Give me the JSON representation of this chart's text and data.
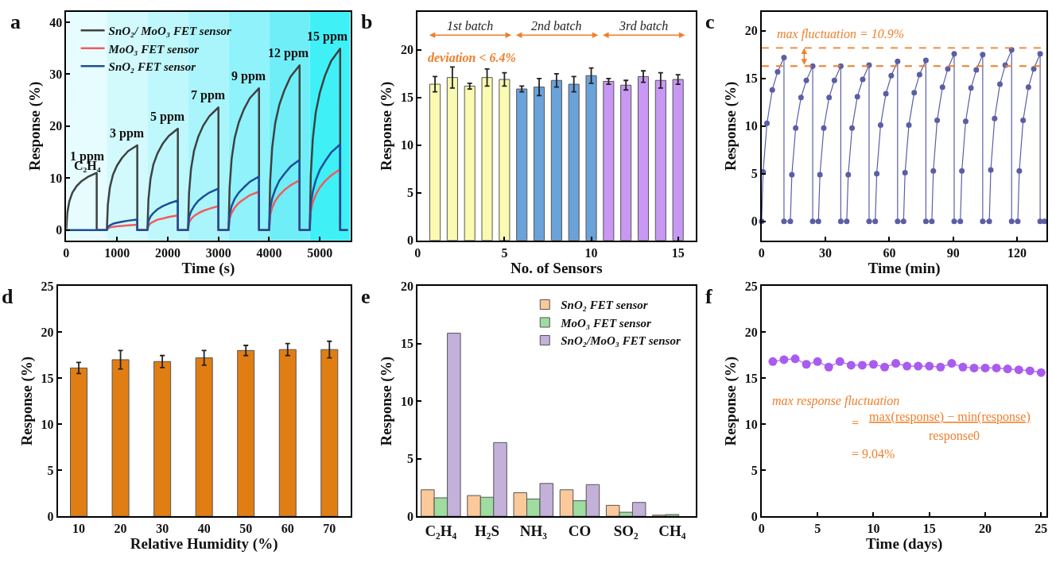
{
  "chart_data": [
    {
      "type": "line",
      "title": "a",
      "xlabel": "Time (s)",
      "ylabel": "Response (%)",
      "xlim": [
        0,
        5600
      ],
      "xticks": [
        0,
        1000,
        2000,
        3000,
        4000,
        5000
      ],
      "ylim": [
        -2,
        42
      ],
      "yticks": [
        0,
        10,
        20,
        30,
        40
      ],
      "grid": false,
      "legend": "top left",
      "x": [
        0,
        20,
        60,
        120,
        200,
        300,
        420,
        600,
        600,
        800,
        820,
        860,
        920,
        1000,
        1100,
        1220,
        1400,
        1400,
        1600,
        1620,
        1660,
        1720,
        1800,
        1900,
        2020,
        2200,
        2200,
        2400,
        2420,
        2460,
        2520,
        2600,
        2700,
        2820,
        3000,
        3000,
        3200,
        3220,
        3260,
        3320,
        3400,
        3500,
        3620,
        3800,
        3800,
        4000,
        4020,
        4060,
        4120,
        4200,
        4300,
        4420,
        4600,
        4600,
        4800,
        4820,
        4860,
        4920,
        5000,
        5100,
        5220,
        5400,
        5400,
        5550
      ],
      "series": [
        {
          "name": "SnO₂/ MoO₃ FET sensor",
          "color": "#404040",
          "values": [
            0,
            3.3,
            5.5,
            7.2,
            8.4,
            9.4,
            10.2,
            11,
            0,
            0,
            4.9,
            8.2,
            10.6,
            12.4,
            13.9,
            15.2,
            16.3,
            0,
            0,
            5.9,
            9.8,
            12.7,
            14.8,
            16.6,
            18.1,
            19.5,
            0,
            0,
            7.1,
            11.8,
            15.3,
            17.9,
            20.1,
            21.9,
            23.6,
            0,
            0,
            8.2,
            13.7,
            17.7,
            20.7,
            23.2,
            25.4,
            27.3,
            0,
            0,
            9.5,
            15.9,
            20.6,
            24.1,
            26.9,
            29.5,
            31.7,
            0,
            0,
            10.5,
            17.5,
            22.7,
            26.5,
            29.7,
            32.5,
            34.9,
            0,
            0
          ]
        },
        {
          "name": "MoO₃ FET sensor",
          "color": "#f25c5c",
          "values": [
            null,
            null,
            null,
            null,
            null,
            null,
            null,
            null,
            0,
            0,
            0.3,
            0.5,
            0.6,
            0.7,
            0.8,
            0.9,
            1,
            0,
            0,
            0.8,
            1.3,
            1.6,
            2.0,
            2.2,
            2.5,
            2.8,
            0,
            0,
            1.4,
            2.1,
            2.7,
            3.2,
            3.7,
            4.1,
            4.6,
            0,
            0,
            2.2,
            3.3,
            4.3,
            5.2,
            5.9,
            6.7,
            7.4,
            0,
            0,
            2.9,
            4.3,
            5.6,
            6.7,
            7.7,
            8.6,
            9.6,
            0,
            0,
            3.5,
            5.3,
            6.8,
            8.2,
            9.4,
            10.5,
            11.7,
            0,
            0
          ]
        },
        {
          "name": "SnO₂ FET sensor",
          "color": "#1f4e96",
          "values": [
            null,
            0,
            0,
            0,
            0,
            0,
            0,
            0,
            0,
            0,
            0.6,
            0.9,
            1.2,
            1.4,
            1.6,
            1.8,
            2,
            0,
            0,
            1.7,
            2.6,
            3.3,
            4.0,
            4.6,
            5.1,
            5.7,
            0,
            0,
            2.4,
            3.6,
            4.6,
            5.6,
            6.4,
            7.2,
            8,
            0,
            0,
            3.1,
            4.6,
            6.0,
            7.2,
            8.2,
            9.3,
            10.3,
            0,
            0,
            4.1,
            6.1,
            7.8,
            9.5,
            10.8,
            12.2,
            13.5,
            0,
            0,
            5,
            7.4,
            9.6,
            11.6,
            13.2,
            14.9,
            16.5,
            0,
            0
          ]
        }
      ],
      "bands": [
        {
          "axis": "x",
          "from": 0,
          "to": 800,
          "color": "#e6fcfe"
        },
        {
          "axis": "x",
          "from": 800,
          "to": 1600,
          "color": "#d2fafd"
        },
        {
          "axis": "x",
          "from": 1600,
          "to": 2400,
          "color": "#bff8fc"
        },
        {
          "axis": "x",
          "from": 2400,
          "to": 3200,
          "color": "#a9f5fb"
        },
        {
          "axis": "x",
          "from": 3200,
          "to": 4000,
          "color": "#90f2fa"
        },
        {
          "axis": "x",
          "from": 4000,
          "to": 4800,
          "color": "#70eef8"
        },
        {
          "axis": "x",
          "from": 4800,
          "to": 5600,
          "color": "#3ff0f7"
        }
      ],
      "annotations": [
        "1 ppm",
        "C₂H₄",
        "3 ppm",
        "5 ppm",
        "7 ppm",
        "9 ppm",
        "12 ppm",
        "15 ppm"
      ]
    },
    {
      "type": "bar",
      "title": "b",
      "xlabel": "No. of Sensors",
      "ylabel": "Response (%)",
      "xlim": [
        0,
        16
      ],
      "xticks": [
        0,
        5,
        10,
        15
      ],
      "ylim": [
        0,
        24
      ],
      "yticks": [
        0,
        5,
        10,
        15,
        20
      ],
      "grid": false,
      "x": [
        1,
        2,
        3,
        4,
        5,
        6,
        7,
        8,
        9,
        10,
        11,
        12,
        13,
        14,
        15
      ],
      "values": [
        16.4,
        17.1,
        16.2,
        17.1,
        16.9,
        15.9,
        16.1,
        16.8,
        16.4,
        17.3,
        16.7,
        16.3,
        17.2,
        16.8,
        16.9
      ],
      "errors": [
        0.8,
        1.1,
        0.3,
        0.9,
        0.7,
        0.3,
        0.9,
        0.7,
        0.8,
        0.8,
        0.3,
        0.5,
        0.6,
        0.8,
        0.5
      ],
      "colors": [
        "#fafab0",
        "#fafab0",
        "#fafab0",
        "#fafab0",
        "#fafab0",
        "#6aa2da",
        "#6aa2da",
        "#6aa2da",
        "#6aa2da",
        "#6aa2da",
        "#c898f4",
        "#c898f4",
        "#c898f4",
        "#c898f4",
        "#c898f4"
      ],
      "annotations": [
        "1st batch",
        "2nd batch",
        "3rd batch",
        "deviation < 6.4%"
      ]
    },
    {
      "type": "line",
      "title": "c",
      "xlabel": "Time (min)",
      "ylabel": "Response (%)",
      "xlim": [
        0,
        134
      ],
      "xticks": [
        0,
        30,
        60,
        90,
        120
      ],
      "ylim": [
        -2,
        22
      ],
      "yticks": [
        0,
        5,
        10,
        15,
        20
      ],
      "grid": false,
      "marker": "circle",
      "x": [
        0,
        0.7,
        2.5,
        5,
        7.5,
        10.5,
        10.5,
        13.5,
        14.2,
        16,
        18.5,
        21,
        24,
        24,
        26.7,
        27.4,
        29.2,
        31.7,
        34.2,
        37.2,
        37.2,
        40,
        40.7,
        42.5,
        45,
        47.5,
        50.5,
        50.5,
        53.4,
        54.1,
        55.9,
        58.4,
        60.9,
        63.9,
        63.9,
        66.7,
        67.4,
        69.2,
        71.7,
        74.2,
        77.2,
        77.2,
        80,
        80.7,
        82.5,
        85,
        87.5,
        90.5,
        90.5,
        93.4,
        94.1,
        95.9,
        98.4,
        100.9,
        103.9,
        103.9,
        107,
        107.7,
        109.5,
        112,
        114.5,
        117.5,
        117.5,
        120.4,
        121.1,
        122.9,
        125.4,
        127.9,
        130.9,
        130.9,
        133
      ],
      "series": [
        {
          "color": "#5b5ea6",
          "values": [
            0,
            5.2,
            10.3,
            13.8,
            15.7,
            17.2,
            0,
            0,
            4.9,
            9.8,
            13.0,
            14.8,
            16.3,
            0,
            0,
            4.9,
            9.8,
            13.0,
            14.8,
            16.3,
            0,
            0,
            4.9,
            9.8,
            13.1,
            14.9,
            16.4,
            0,
            0,
            5.0,
            10.1,
            13.4,
            15.3,
            16.8,
            0,
            0,
            5.1,
            10.1,
            13.5,
            15.4,
            16.9,
            0,
            0,
            5.3,
            10.6,
            14.1,
            16.0,
            17.6,
            0,
            0,
            5.3,
            10.5,
            14.0,
            15.9,
            17.5,
            0,
            0,
            5.4,
            10.8,
            14.4,
            16.4,
            18.0,
            0,
            0,
            5.3,
            10.6,
            14.1,
            16.0,
            17.6,
            0,
            0
          ]
        }
      ],
      "annotations": [
        {
          "text": "max fluctuation = 10.9%",
          "x": 20,
          "y": 18.2
        }
      ],
      "ref_lines": [
        {
          "axis": "y",
          "value": 18.2,
          "color": "#f07f2a",
          "line_style": "dashed"
        },
        {
          "axis": "y",
          "value": 16.3,
          "color": "#f07f2a",
          "line_style": "dashed"
        }
      ]
    },
    {
      "type": "bar",
      "title": "d",
      "xlabel": "Relative Humidity (%)",
      "ylabel": "Response (%)",
      "ylim": [
        0,
        25
      ],
      "yticks": [
        0,
        5,
        10,
        15,
        20,
        25
      ],
      "grid": false,
      "categories": [
        "10",
        "20",
        "30",
        "40",
        "50",
        "60",
        "70"
      ],
      "values": [
        16.1,
        17.0,
        16.8,
        17.2,
        18.0,
        18.1,
        18.1
      ],
      "errors": [
        0.6,
        1.0,
        0.65,
        0.8,
        0.55,
        0.65,
        0.9
      ],
      "color": "#e07e14"
    },
    {
      "type": "bar",
      "title": "e",
      "ylabel": "Response (%)",
      "ylim": [
        0,
        20
      ],
      "yticks": [
        0,
        5,
        10,
        15,
        20
      ],
      "grid": false,
      "legend": "top right",
      "categories": [
        "C₂H₄",
        "H₂S",
        "NH₃",
        "CO",
        "SO₂",
        "CH₄"
      ],
      "series": [
        {
          "name": "SnO₂ FET sensor",
          "color": "#fbc99a",
          "values": [
            2.3,
            1.8,
            2.05,
            2.3,
            0.95,
            0.1
          ]
        },
        {
          "name": "MoO₃ FET sensor",
          "color": "#9fdc9f",
          "values": [
            1.6,
            1.65,
            1.5,
            1.35,
            0.35,
            0.15
          ]
        },
        {
          "name": "SnO₂/MoO₃ FET sensor",
          "color": "#c3b1d9",
          "values": [
            15.9,
            6.4,
            2.85,
            2.75,
            1.2,
            null
          ]
        }
      ]
    },
    {
      "type": "line",
      "title": "f",
      "xlabel": "Time (days)",
      "ylabel": "Response (%)",
      "xlim": [
        0,
        25.5
      ],
      "xticks": [
        0,
        5,
        10,
        15,
        20,
        25
      ],
      "ylim": [
        0,
        25
      ],
      "yticks": [
        0,
        5,
        10,
        15,
        20,
        25
      ],
      "grid": false,
      "marker": "circle",
      "x": [
        1,
        2,
        3,
        4,
        5,
        6,
        7,
        8,
        9,
        10,
        11,
        12,
        13,
        14,
        15,
        16,
        17,
        18,
        19,
        20,
        21,
        22,
        23,
        24,
        25
      ],
      "series": [
        {
          "color": "#a95cf0",
          "values": [
            16.8,
            17.0,
            17.1,
            16.5,
            16.8,
            16.2,
            16.8,
            16.4,
            16.4,
            16.5,
            16.2,
            16.6,
            16.3,
            16.3,
            16.3,
            16.2,
            16.6,
            16.2,
            16.1,
            16.1,
            16.1,
            16.0,
            15.9,
            15.8,
            15.6
          ]
        }
      ],
      "annotations": [
        "max response fluctuation",
        "=",
        "max(response) − min(response)",
        "response0",
        "= 9.04%"
      ]
    }
  ]
}
